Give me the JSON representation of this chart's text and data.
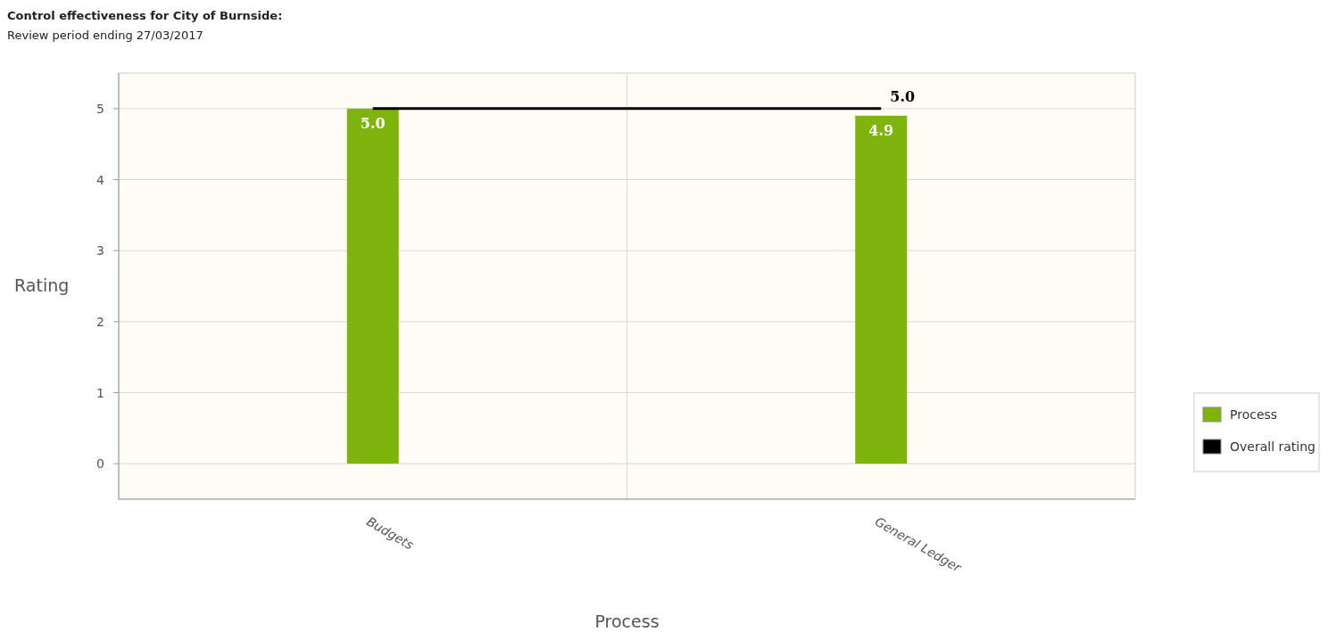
{
  "chart_data": {
    "type": "bar",
    "title": "Control effectiveness for City of Burnside:",
    "subtitle": "Review period ending 27/03/2017",
    "xlabel": "Process",
    "ylabel": "Rating",
    "categories": [
      "Budgets",
      "General Ledger"
    ],
    "series": [
      {
        "name": "Process",
        "color": "#7fb30e",
        "values": [
          5.0,
          4.9
        ],
        "value_labels": [
          "5.0",
          "4.9"
        ]
      },
      {
        "name": "Overall rating",
        "type": "line",
        "color": "#000000",
        "values": [
          5.0,
          5.0
        ],
        "value_labels": [
          null,
          "5.0"
        ]
      }
    ],
    "ylim": [
      -0.5,
      5.5
    ],
    "yticks": [
      0,
      1,
      2,
      3,
      4,
      5
    ],
    "grid": true,
    "legend": "right"
  }
}
